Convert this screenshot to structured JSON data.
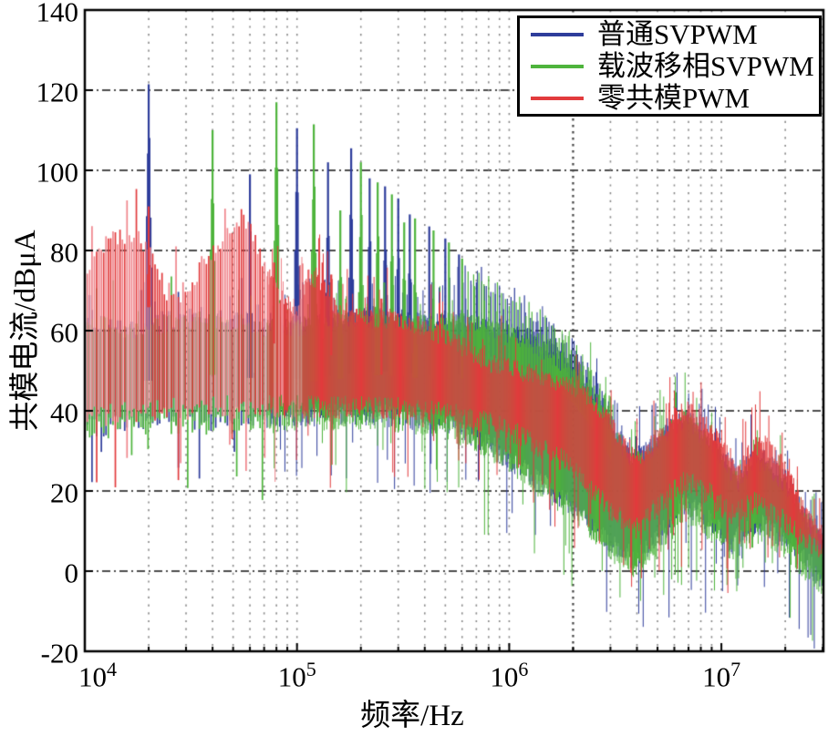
{
  "chart_data": {
    "type": "line",
    "subtype": "emi-spectrum",
    "title": "",
    "xlabel": "频率/Hz",
    "ylabel": "共模电流/dBμA",
    "xscale": "log",
    "xlim_log10": [
      4.0,
      7.48
    ],
    "ylim": [
      -20,
      140
    ],
    "grid": true,
    "legend_position": "top-right",
    "yticks": [
      {
        "value": 140,
        "label": "140"
      },
      {
        "value": 120,
        "label": "120"
      },
      {
        "value": 100,
        "label": "100"
      },
      {
        "value": 80,
        "label": "80"
      },
      {
        "value": 60,
        "label": "60"
      },
      {
        "value": 40,
        "label": "40"
      },
      {
        "value": 20,
        "label": "20"
      },
      {
        "value": 0,
        "label": "0"
      },
      {
        "value": -20,
        "label": "-20"
      }
    ],
    "xticks": [
      {
        "log": 4,
        "base": "10",
        "exp": "4"
      },
      {
        "log": 5,
        "base": "10",
        "exp": "5"
      },
      {
        "log": 6,
        "base": "10",
        "exp": "6"
      },
      {
        "log": 7,
        "base": "10",
        "exp": "7"
      }
    ],
    "grid_colors": {
      "horizontal": "#111111",
      "vertical": "#8a8a8a",
      "vertical_dark": "#444444"
    },
    "comb_base_hz": 20000,
    "spike_envelope": [
      [
        5.78,
        78
      ],
      [
        5.9,
        73
      ],
      [
        6.0,
        68
      ],
      [
        6.16,
        61
      ],
      [
        6.3,
        54
      ],
      [
        6.4,
        46
      ],
      [
        6.5,
        38
      ],
      [
        6.58,
        31
      ]
    ],
    "series": [
      {
        "name": "普通SVPWM",
        "color": "#2e3d9b",
        "comb": "odd",
        "band_top": [
          [
            4.0,
            64
          ],
          [
            4.2,
            60
          ],
          [
            4.4,
            63
          ],
          [
            4.6,
            64
          ],
          [
            4.8,
            62
          ],
          [
            5.0,
            62
          ],
          [
            5.2,
            63
          ],
          [
            5.4,
            64
          ],
          [
            5.6,
            63
          ],
          [
            5.8,
            63
          ],
          [
            5.95,
            61
          ],
          [
            6.1,
            58
          ],
          [
            6.2,
            55
          ],
          [
            6.3,
            51
          ],
          [
            6.4,
            44
          ],
          [
            6.5,
            35
          ],
          [
            6.57,
            29
          ],
          [
            6.65,
            30
          ],
          [
            6.75,
            36
          ],
          [
            6.83,
            39
          ],
          [
            6.92,
            34
          ],
          [
            7.0,
            30
          ],
          [
            7.08,
            24
          ],
          [
            7.15,
            29
          ],
          [
            7.22,
            28
          ],
          [
            7.32,
            22
          ],
          [
            7.4,
            14
          ],
          [
            7.48,
            8
          ]
        ],
        "band_bottom": [
          [
            4.0,
            36
          ],
          [
            4.3,
            38
          ],
          [
            4.6,
            38
          ],
          [
            5.0,
            39
          ],
          [
            5.4,
            39
          ],
          [
            5.7,
            37
          ],
          [
            5.9,
            32
          ],
          [
            6.05,
            26
          ],
          [
            6.2,
            20
          ],
          [
            6.3,
            16
          ],
          [
            6.4,
            11
          ],
          [
            6.5,
            6
          ],
          [
            6.6,
            3
          ],
          [
            6.7,
            8
          ],
          [
            6.83,
            17
          ],
          [
            6.95,
            12
          ],
          [
            7.05,
            7
          ],
          [
            7.12,
            10
          ],
          [
            7.2,
            12
          ],
          [
            7.3,
            8
          ],
          [
            7.4,
            2
          ],
          [
            7.48,
            -2
          ]
        ],
        "peaks": [
          [
            20000,
            121.5
          ],
          [
            60000,
            99
          ],
          [
            100000,
            110.5
          ],
          [
            140000,
            102
          ],
          [
            180000,
            105.5
          ],
          [
            220000,
            98
          ],
          [
            260000,
            96
          ],
          [
            300000,
            93
          ],
          [
            340000,
            89
          ],
          [
            420000,
            86
          ],
          [
            500000,
            83
          ],
          [
            580000,
            79
          ]
        ]
      },
      {
        "name": "载波移相SVPWM",
        "color": "#4eb43c",
        "comb": "even",
        "band_top": [
          [
            4.0,
            63
          ],
          [
            4.2,
            59
          ],
          [
            4.4,
            62
          ],
          [
            4.6,
            63
          ],
          [
            4.8,
            61
          ],
          [
            5.0,
            61
          ],
          [
            5.2,
            62
          ],
          [
            5.4,
            63
          ],
          [
            5.6,
            62
          ],
          [
            5.8,
            62
          ],
          [
            5.95,
            60
          ],
          [
            6.1,
            57
          ],
          [
            6.2,
            54
          ],
          [
            6.3,
            50
          ],
          [
            6.4,
            43
          ],
          [
            6.5,
            34
          ],
          [
            6.57,
            28
          ],
          [
            6.65,
            29
          ],
          [
            6.75,
            35
          ],
          [
            6.83,
            38
          ],
          [
            6.92,
            33
          ],
          [
            7.0,
            28
          ],
          [
            7.08,
            22
          ],
          [
            7.15,
            27
          ],
          [
            7.22,
            26
          ],
          [
            7.32,
            20
          ],
          [
            7.4,
            12
          ],
          [
            7.48,
            6
          ]
        ],
        "band_bottom": [
          [
            4.0,
            35
          ],
          [
            4.3,
            37
          ],
          [
            4.6,
            37
          ],
          [
            5.0,
            38
          ],
          [
            5.4,
            38
          ],
          [
            5.7,
            36
          ],
          [
            5.9,
            31
          ],
          [
            6.05,
            25
          ],
          [
            6.2,
            19
          ],
          [
            6.3,
            15
          ],
          [
            6.4,
            10
          ],
          [
            6.5,
            4
          ],
          [
            6.6,
            1
          ],
          [
            6.7,
            6
          ],
          [
            6.83,
            15
          ],
          [
            6.95,
            10
          ],
          [
            7.05,
            5
          ],
          [
            7.12,
            8
          ],
          [
            7.2,
            10
          ],
          [
            7.3,
            6
          ],
          [
            7.4,
            0
          ],
          [
            7.48,
            -3
          ]
        ],
        "peaks": [
          [
            40000,
            110
          ],
          [
            80000,
            117
          ],
          [
            120000,
            111.5
          ],
          [
            160000,
            90
          ],
          [
            200000,
            102
          ],
          [
            240000,
            97
          ],
          [
            280000,
            94
          ],
          [
            320000,
            87
          ],
          [
            360000,
            88
          ],
          [
            440000,
            85
          ],
          [
            520000,
            82
          ],
          [
            600000,
            78
          ]
        ]
      },
      {
        "name": "零共模PWM",
        "color": "#e23b3d",
        "light_color": "#f0858c",
        "comb": "none",
        "band_top": [
          [
            4.0,
            72
          ],
          [
            4.05,
            78
          ],
          [
            4.1,
            82
          ],
          [
            4.17,
            84
          ],
          [
            4.25,
            83
          ],
          [
            4.3,
            80
          ],
          [
            4.38,
            70
          ],
          [
            4.45,
            69
          ],
          [
            4.52,
            74
          ],
          [
            4.6,
            80
          ],
          [
            4.68,
            85
          ],
          [
            4.74,
            88
          ],
          [
            4.8,
            83
          ],
          [
            4.86,
            74
          ],
          [
            4.92,
            68
          ],
          [
            5.0,
            65
          ],
          [
            5.06,
            74
          ],
          [
            5.12,
            72
          ],
          [
            5.18,
            66
          ],
          [
            5.3,
            63
          ],
          [
            5.45,
            63
          ],
          [
            5.6,
            61
          ],
          [
            5.75,
            57
          ],
          [
            5.9,
            52
          ],
          [
            6.05,
            50
          ],
          [
            6.2,
            48
          ],
          [
            6.35,
            45
          ],
          [
            6.45,
            39
          ],
          [
            6.55,
            31
          ],
          [
            6.62,
            29
          ],
          [
            6.72,
            35
          ],
          [
            6.83,
            41
          ],
          [
            6.9,
            38
          ],
          [
            7.0,
            33
          ],
          [
            7.08,
            25
          ],
          [
            7.15,
            31
          ],
          [
            7.2,
            32
          ],
          [
            7.28,
            27
          ],
          [
            7.35,
            20
          ],
          [
            7.42,
            13
          ],
          [
            7.48,
            9
          ]
        ],
        "band_bottom": [
          [
            4.0,
            38
          ],
          [
            4.3,
            40
          ],
          [
            4.7,
            41
          ],
          [
            5.0,
            41
          ],
          [
            5.3,
            41
          ],
          [
            5.6,
            40
          ],
          [
            5.85,
            38
          ],
          [
            6.0,
            35
          ],
          [
            6.15,
            31
          ],
          [
            6.3,
            26
          ],
          [
            6.4,
            20
          ],
          [
            6.5,
            14
          ],
          [
            6.6,
            11
          ],
          [
            6.7,
            16
          ],
          [
            6.83,
            23
          ],
          [
            6.95,
            19
          ],
          [
            7.05,
            14
          ],
          [
            7.15,
            17
          ],
          [
            7.25,
            15
          ],
          [
            7.35,
            10
          ],
          [
            7.45,
            5
          ],
          [
            7.48,
            4
          ]
        ],
        "peaks": [
          [
            20000,
            91
          ],
          [
            78000,
            77
          ],
          [
            132000,
            77
          ],
          [
            145000,
            74
          ],
          [
            250000,
            68
          ]
        ]
      }
    ]
  }
}
